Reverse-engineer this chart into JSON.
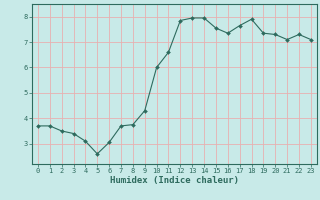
{
  "x": [
    0,
    1,
    2,
    3,
    4,
    5,
    6,
    7,
    8,
    9,
    10,
    11,
    12,
    13,
    14,
    15,
    16,
    17,
    18,
    19,
    20,
    21,
    22,
    23
  ],
  "y": [
    3.7,
    3.7,
    3.5,
    3.4,
    3.1,
    2.6,
    3.05,
    3.7,
    3.75,
    4.3,
    6.0,
    6.6,
    7.85,
    7.95,
    7.95,
    7.55,
    7.35,
    7.65,
    7.9,
    7.35,
    7.3,
    7.1,
    7.3,
    7.1
  ],
  "line_color": "#2e6b5e",
  "marker": "D",
  "marker_size": 2.0,
  "bg_color": "#c8eae8",
  "grid_color": "#e8b0b0",
  "axis_color": "#2e6b5e",
  "xlabel": "Humidex (Indice chaleur)",
  "xlabel_fontsize": 6.5,
  "xlabel_color": "#2e6b5e",
  "tick_color": "#2e6b5e",
  "tick_fontsize": 5.0,
  "ylim": [
    2.2,
    8.5
  ],
  "xlim": [
    -0.5,
    23.5
  ],
  "yticks": [
    3,
    4,
    5,
    6,
    7,
    8
  ],
  "xticks": [
    0,
    1,
    2,
    3,
    4,
    5,
    6,
    7,
    8,
    9,
    10,
    11,
    12,
    13,
    14,
    15,
    16,
    17,
    18,
    19,
    20,
    21,
    22,
    23
  ]
}
